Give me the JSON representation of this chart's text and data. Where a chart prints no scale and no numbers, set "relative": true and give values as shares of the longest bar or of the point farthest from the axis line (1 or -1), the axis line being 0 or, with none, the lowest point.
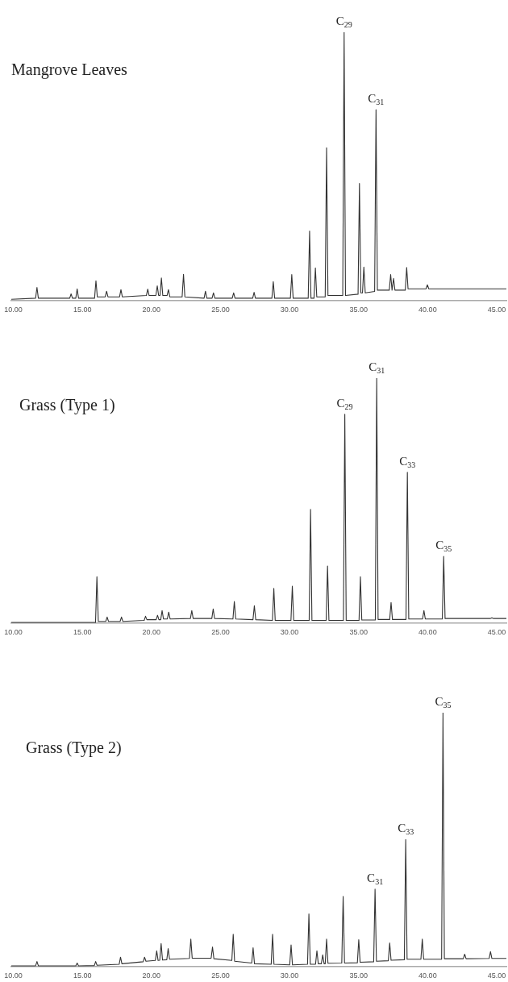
{
  "chart_data": [
    {
      "type": "line",
      "title": "Mangrove Leaves",
      "relative": true,
      "marker": "none",
      "grid": false,
      "tick_labels": "x",
      "series": [
        {
          "color": "#333333",
          "x": [
            9.85,
            11.61,
            11.71,
            11.81,
            14.08,
            14.18,
            14.28,
            14.52,
            14.62,
            14.72,
            15.88,
            15.98,
            16.08,
            16.65,
            16.75,
            16.85,
            17.69,
            17.79,
            17.89,
            19.63,
            19.73,
            19.83,
            20.32,
            20.42,
            20.52,
            20.62,
            20.72,
            20.82,
            21.13,
            21.23,
            21.33,
            22.22,
            22.32,
            22.42,
            23.81,
            23.91,
            24.01,
            24.39,
            24.49,
            24.59,
            25.85,
            25.95,
            26.05,
            27.33,
            27.43,
            27.53,
            28.72,
            28.82,
            28.92,
            30.06,
            30.16,
            30.26,
            31.35,
            31.45,
            31.55,
            31.77,
            31.87,
            31.97,
            32.58,
            32.68,
            32.78,
            33.85,
            33.95,
            34.05,
            34.96,
            35.06,
            35.16,
            35.28,
            35.38,
            35.48,
            36.16,
            36.26,
            36.36,
            37.22,
            37.32,
            37.42,
            37.43,
            37.53,
            37.63,
            38.38,
            38.48,
            38.58,
            39.88,
            39.98,
            40.08,
            45.7
          ],
          "values": [
            0.006,
            0.01,
            0.05,
            0.01,
            0.01,
            0.026,
            0.01,
            0.01,
            0.045,
            0.01,
            0.01,
            0.075,
            0.015,
            0.015,
            0.036,
            0.015,
            0.015,
            0.042,
            0.015,
            0.02,
            0.044,
            0.02,
            0.02,
            0.056,
            0.02,
            0.02,
            0.085,
            0.02,
            0.02,
            0.042,
            0.015,
            0.015,
            0.099,
            0.015,
            0.01,
            0.036,
            0.01,
            0.01,
            0.03,
            0.01,
            0.01,
            0.03,
            0.01,
            0.01,
            0.032,
            0.01,
            0.01,
            0.072,
            0.01,
            0.01,
            0.098,
            0.01,
            0.01,
            0.26,
            0.01,
            0.01,
            0.123,
            0.015,
            0.015,
            0.57,
            0.02,
            0.02,
            1,
            0.02,
            0.025,
            0.437,
            0.03,
            0.03,
            0.126,
            0.03,
            0.035,
            0.712,
            0.04,
            0.04,
            0.098,
            0.04,
            0.04,
            0.084,
            0.04,
            0.04,
            0.124,
            0.045,
            0.045,
            0.06,
            0.045,
            0.045
          ]
        }
      ],
      "xlim": [
        9.85,
        45.7
      ],
      "xticks": [
        {
          "value": 10,
          "label": "10.00"
        },
        {
          "value": 15,
          "label": "15.00"
        },
        {
          "value": 20,
          "label": "20.00"
        },
        {
          "value": 25,
          "label": "25.00"
        },
        {
          "value": 30,
          "label": "30.00"
        },
        {
          "value": 35,
          "label": "35.00"
        },
        {
          "value": 40,
          "label": "40.00"
        },
        {
          "value": 45,
          "label": "45.00"
        }
      ],
      "annotations": [
        {
          "text": "C$_{29}$",
          "x": 33.95,
          "y": 1
        },
        {
          "text": "C$_{31}$",
          "x": 36.26,
          "y": 0.712
        }
      ]
    },
    {
      "type": "line",
      "title": "Grass (Type 1)",
      "relative": true,
      "marker": "none",
      "grid": false,
      "tick_labels": "x",
      "series": [
        {
          "color": "#333333",
          "x": [
            9.85,
            15.95,
            16.05,
            16.15,
            16.69,
            16.79,
            16.89,
            17.73,
            17.83,
            17.93,
            19.47,
            19.57,
            19.67,
            20.34,
            20.44,
            20.54,
            20.67,
            20.77,
            20.87,
            21.15,
            21.25,
            21.35,
            22.82,
            22.92,
            23.02,
            24.37,
            24.47,
            24.57,
            25.9,
            26.0,
            26.1,
            27.35,
            27.45,
            27.55,
            28.76,
            28.86,
            28.96,
            30.1,
            30.2,
            30.3,
            31.42,
            31.52,
            31.62,
            32.65,
            32.75,
            32.85,
            33.9,
            34.0,
            34.1,
            35.03,
            35.13,
            35.23,
            36.21,
            36.31,
            36.41,
            37.25,
            37.35,
            37.45,
            38.43,
            38.53,
            38.63,
            39.63,
            39.73,
            39.83,
            41.06,
            41.16,
            41.26,
            44.55,
            44.65,
            44.75,
            45.7
          ],
          "values": [
            0.004,
            0.004,
            0.19,
            0.008,
            0.008,
            0.026,
            0.008,
            0.008,
            0.026,
            0.008,
            0.012,
            0.029,
            0.015,
            0.015,
            0.033,
            0.015,
            0.015,
            0.052,
            0.018,
            0.018,
            0.046,
            0.018,
            0.02,
            0.052,
            0.02,
            0.02,
            0.059,
            0.02,
            0.018,
            0.089,
            0.018,
            0.015,
            0.072,
            0.015,
            0.012,
            0.143,
            0.012,
            0.012,
            0.152,
            0.012,
            0.012,
            0.465,
            0.012,
            0.012,
            0.234,
            0.012,
            0.012,
            0.853,
            0.012,
            0.012,
            0.19,
            0.014,
            0.014,
            1,
            0.016,
            0.016,
            0.085,
            0.016,
            0.016,
            0.616,
            0.018,
            0.018,
            0.052,
            0.018,
            0.018,
            0.273,
            0.02,
            0.02,
            0.023,
            0.02,
            0.02
          ]
        }
      ],
      "xlim": [
        9.85,
        45.7
      ],
      "xticks": [
        {
          "value": 10,
          "label": "10.00"
        },
        {
          "value": 15,
          "label": "15.00"
        },
        {
          "value": 20,
          "label": "20.00"
        },
        {
          "value": 25,
          "label": "25.00"
        },
        {
          "value": 30,
          "label": "30.00"
        },
        {
          "value": 35,
          "label": "35.00"
        },
        {
          "value": 40,
          "label": "40.00"
        },
        {
          "value": 45,
          "label": "45.00"
        }
      ],
      "annotations": [
        {
          "text": "C$_{29}$",
          "x": 34.0,
          "y": 0.853
        },
        {
          "text": "C$_{31}$",
          "x": 36.31,
          "y": 1
        },
        {
          "text": "C$_{33}$",
          "x": 38.53,
          "y": 0.616
        },
        {
          "text": "C$_{35}$",
          "x": 41.16,
          "y": 0.273
        }
      ]
    },
    {
      "type": "line",
      "title": "Grass (Type 2)",
      "relative": true,
      "marker": "none",
      "grid": false,
      "tick_labels": "x",
      "series": [
        {
          "color": "#333333",
          "x": [
            9.85,
            11.61,
            11.71,
            11.81,
            14.52,
            14.62,
            14.72,
            15.86,
            15.96,
            16.06,
            17.66,
            17.76,
            17.86,
            19.4,
            19.5,
            19.6,
            20.28,
            20.38,
            20.48,
            20.6,
            20.7,
            20.8,
            21.11,
            21.21,
            21.31,
            22.75,
            22.85,
            22.95,
            24.32,
            24.42,
            24.52,
            25.82,
            25.92,
            26.02,
            27.26,
            27.36,
            27.46,
            28.67,
            28.77,
            28.87,
            30.01,
            30.11,
            30.21,
            31.3,
            31.4,
            31.5,
            31.88,
            31.98,
            32.08,
            32.3,
            32.4,
            32.5,
            32.58,
            32.68,
            32.78,
            33.78,
            33.88,
            33.98,
            34.91,
            35.01,
            35.11,
            36.09,
            36.19,
            36.29,
            37.15,
            37.25,
            37.35,
            38.31,
            38.41,
            38.51,
            39.51,
            39.61,
            39.71,
            41.01,
            41.11,
            41.21,
            42.58,
            42.68,
            42.78,
            44.45,
            44.55,
            44.65,
            45.7
          ],
          "values": [
            0.004,
            0.004,
            0.021,
            0.004,
            0.004,
            0.015,
            0.004,
            0.005,
            0.021,
            0.006,
            0.01,
            0.038,
            0.012,
            0.02,
            0.038,
            0.022,
            0.025,
            0.063,
            0.025,
            0.026,
            0.092,
            0.027,
            0.028,
            0.072,
            0.03,
            0.033,
            0.109,
            0.034,
            0.034,
            0.078,
            0.032,
            0.025,
            0.128,
            0.022,
            0.015,
            0.075,
            0.012,
            0.01,
            0.128,
            0.01,
            0.008,
            0.086,
            0.008,
            0.01,
            0.208,
            0.01,
            0.01,
            0.063,
            0.012,
            0.012,
            0.047,
            0.012,
            0.012,
            0.109,
            0.014,
            0.015,
            0.277,
            0.015,
            0.016,
            0.107,
            0.018,
            0.02,
            0.306,
            0.022,
            0.024,
            0.094,
            0.026,
            0.028,
            0.501,
            0.03,
            0.03,
            0.109,
            0.03,
            0.03,
            1,
            0.032,
            0.032,
            0.05,
            0.032,
            0.033,
            0.06,
            0.033,
            0.033
          ]
        }
      ],
      "xlim": [
        9.85,
        45.7
      ],
      "xticks": [
        {
          "value": 10,
          "label": "10.00"
        },
        {
          "value": 15,
          "label": "15.00"
        },
        {
          "value": 20,
          "label": "20.00"
        },
        {
          "value": 25,
          "label": "25.00"
        },
        {
          "value": 30,
          "label": "30.00"
        },
        {
          "value": 35,
          "label": "35.00"
        },
        {
          "value": 40,
          "label": "40.00"
        },
        {
          "value": 45,
          "label": "45.00"
        }
      ],
      "annotations": [
        {
          "text": "C$_{31}$",
          "x": 36.19,
          "y": 0.306
        },
        {
          "text": "C$_{33}$",
          "x": 38.41,
          "y": 0.501
        },
        {
          "text": "C$_{35}$",
          "x": 41.11,
          "y": 1
        }
      ]
    }
  ]
}
